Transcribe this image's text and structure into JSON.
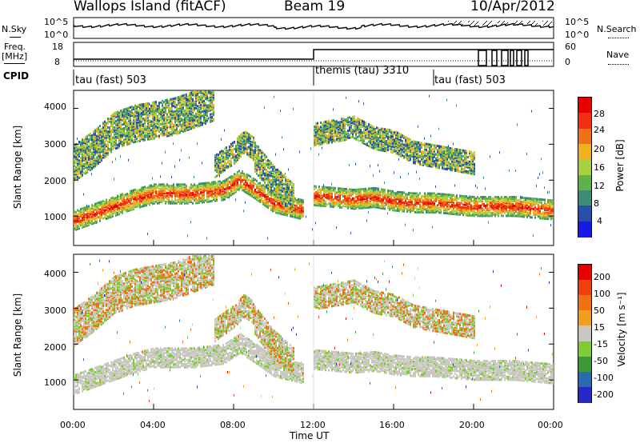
{
  "header": {
    "station": "Wallops Island (fitACF)",
    "beam": "Beam 19",
    "date": "10/Apr/2012"
  },
  "top_panel": {
    "nsky_label": "N.Sky",
    "nsky_tick_top": "10^5",
    "nsky_tick_bottom": "10^0",
    "nsearch_label": "N.Search",
    "nsearch_tick_top": "10^5",
    "nsearch_tick_bottom": "10^0",
    "freq_label_1": "Freq.",
    "freq_label_2": "[MHz]",
    "freq_tick_top": "18",
    "freq_tick_bottom": "8",
    "nave_label": "Nave",
    "nave_tick_top": "60",
    "nave_tick_bottom": "0",
    "cpid_label": "CPID",
    "cpid_segments": [
      {
        "start_ut": 0,
        "end_ut": 12,
        "label": "tau (fast) 503"
      },
      {
        "start_ut": 12,
        "end_ut": 18,
        "label": "themis (tau) 3310"
      },
      {
        "start_ut": 18,
        "end_ut": 24,
        "label": "tau (fast) 503"
      }
    ]
  },
  "colors": {
    "power": [
      "#1818e8",
      "#2850a8",
      "#3c8c78",
      "#62b048",
      "#a8d040",
      "#f0b020",
      "#f07018",
      "#f03010",
      "#e80000"
    ],
    "velocity": [
      "#2828c8",
      "#2a6ab0",
      "#3c9838",
      "#80cc30",
      "#c8c8c0",
      "#f0a020",
      "#f07010",
      "#f04010",
      "#e80000"
    ]
  },
  "chart_data": [
    {
      "type": "heatmap",
      "name": "power",
      "xlabel": "",
      "ylabel": "Slant Range [km]",
      "x_range_ut": [
        0,
        24
      ],
      "x_ticks": [
        "00:00",
        "04:00",
        "08:00",
        "12:00",
        "16:00",
        "20:00",
        "00:00"
      ],
      "ylim": [
        180,
        4500
      ],
      "y_ticks": [
        "1000",
        "2000",
        "3000",
        "4000"
      ],
      "colorbar_label": "Power [dB]",
      "colorbar_ticks": [
        "4",
        "8",
        "12",
        "16",
        "20",
        "24",
        "28"
      ],
      "bands": [
        {
          "name": "lower",
          "x": [
            0,
            1,
            2,
            3,
            4,
            6,
            7.5,
            8.3,
            9,
            10,
            11.5
          ],
          "center": [
            900,
            1100,
            1300,
            1500,
            1650,
            1650,
            1750,
            2050,
            1800,
            1400,
            1200
          ],
          "width": 260
        },
        {
          "name": "lower2",
          "x": [
            12,
            13,
            14,
            15,
            16,
            17,
            18,
            19,
            20,
            21,
            22,
            23,
            24
          ],
          "center": [
            1600,
            1550,
            1500,
            1550,
            1450,
            1400,
            1400,
            1350,
            1300,
            1300,
            1300,
            1250,
            1200
          ],
          "width": 260
        },
        {
          "name": "upper",
          "x": [
            0,
            1,
            2,
            3,
            4,
            5,
            6,
            7
          ],
          "center": [
            2500,
            2900,
            3400,
            3600,
            3700,
            3800,
            4000,
            4200
          ],
          "width": 500
        },
        {
          "name": "upper2",
          "x": [
            12,
            13,
            14,
            15,
            16,
            17,
            18,
            19,
            20
          ],
          "center": [
            3300,
            3400,
            3500,
            3200,
            3100,
            2800,
            2700,
            2600,
            2500
          ],
          "width": 300
        },
        {
          "name": "rise",
          "x": [
            7,
            8,
            8.5,
            9
          ],
          "center": [
            2400,
            2800,
            3100,
            2900
          ],
          "width": 300
        },
        {
          "name": "fall",
          "x": [
            9,
            10,
            11
          ],
          "center": [
            2700,
            2000,
            1500
          ],
          "width": 400
        }
      ]
    },
    {
      "type": "heatmap",
      "name": "velocity",
      "xlabel": "Time UT",
      "ylabel": "Slant Range [km]",
      "x_range_ut": [
        0,
        24
      ],
      "x_ticks": [
        "00:00",
        "04:00",
        "08:00",
        "12:00",
        "16:00",
        "20:00",
        "00:00"
      ],
      "ylim": [
        180,
        4500
      ],
      "y_ticks": [
        "1000",
        "2000",
        "3000",
        "4000"
      ],
      "colorbar_label": "Velocity [m s⁻¹]",
      "colorbar_ticks": [
        "200",
        "100",
        "50",
        "15",
        "-15",
        "-50",
        "-100",
        "-200"
      ]
    }
  ]
}
